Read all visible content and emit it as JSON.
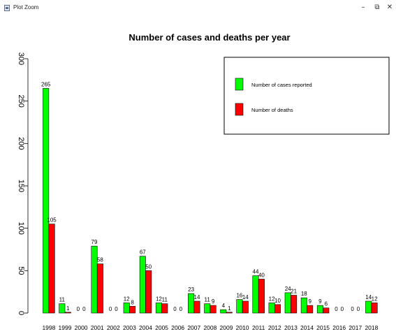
{
  "window": {
    "title": "Plot Zoom",
    "minimize_label": "–",
    "restore_label": "⧉",
    "close_label": "✕"
  },
  "colors": {
    "cases": "#00ff00",
    "deaths": "#ff0000"
  },
  "chart_data": {
    "type": "bar",
    "title": "Number of cases and deaths per year",
    "xlabel": "",
    "ylabel": "",
    "ylim": [
      0,
      300
    ],
    "yticks": [
      0,
      50,
      100,
      150,
      200,
      250,
      300
    ],
    "grid": false,
    "legend_position": "top-right",
    "categories": [
      "1998",
      "1999",
      "2000",
      "2001",
      "2002",
      "2003",
      "2004",
      "2005",
      "2006",
      "2007",
      "2008",
      "2009",
      "2010",
      "2011",
      "2012",
      "2013",
      "2014",
      "2015",
      "2016",
      "2017",
      "2018"
    ],
    "series": [
      {
        "name": "Number of cases reported",
        "color": "#00ff00",
        "values": [
          265,
          11,
          0,
          79,
          0,
          12,
          67,
          12,
          0,
          23,
          11,
          4,
          16,
          44,
          12,
          24,
          18,
          9,
          0,
          0,
          14
        ]
      },
      {
        "name": "Number of deaths",
        "color": "#ff0000",
        "values": [
          105,
          1,
          0,
          58,
          0,
          8,
          50,
          11,
          0,
          14,
          9,
          1,
          14,
          40,
          10,
          21,
          9,
          6,
          0,
          0,
          12
        ]
      }
    ]
  }
}
